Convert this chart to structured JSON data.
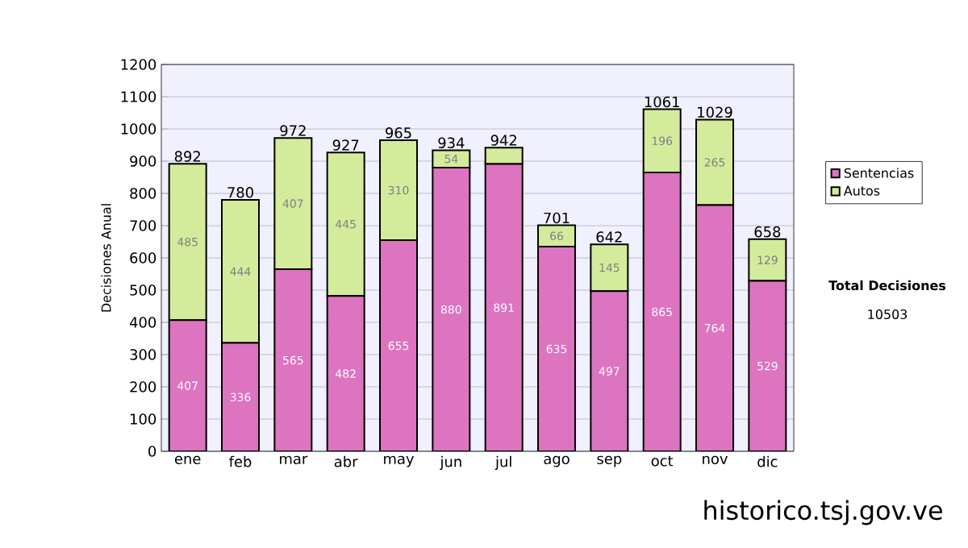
{
  "chart_data": {
    "type": "bar",
    "stacked": true,
    "ylabel": "Decisiones Anual",
    "categories": [
      "ene",
      "feb",
      "mar",
      "abr",
      "may",
      "jun",
      "jul",
      "ago",
      "sep",
      "oct",
      "nov",
      "dic"
    ],
    "series": [
      {
        "name": "Sentencias",
        "color": "#dc74c0",
        "values": [
          407,
          336,
          565,
          482,
          655,
          880,
          891,
          635,
          497,
          865,
          764,
          529
        ],
        "value_labels": [
          "407",
          "336",
          "565",
          "482",
          "655",
          "880",
          "891",
          "635",
          "497",
          "865",
          "764",
          "529"
        ]
      },
      {
        "name": "Autos",
        "color": "#d4eb9c",
        "values": [
          485,
          444,
          407,
          445,
          310,
          54,
          51,
          66,
          145,
          196,
          265,
          129
        ],
        "value_labels": [
          "485",
          "444",
          "407",
          "445",
          "310",
          "54",
          null,
          "66",
          "145",
          "196",
          "265",
          "129"
        ]
      }
    ],
    "totals": [
      "892",
      "780",
      "972",
      "927",
      "965",
      "934",
      "942",
      "701",
      "642",
      "1061",
      "1029",
      "658"
    ],
    "ylim": [
      0,
      1200
    ],
    "yticks": [
      0,
      100,
      200,
      300,
      400,
      500,
      600,
      700,
      800,
      900,
      1000,
      1100,
      1200
    ],
    "grid": "y",
    "legend": "right",
    "annotations": [
      "Total Decisiones",
      "10503",
      "historico.tsj.gov.ve"
    ]
  }
}
